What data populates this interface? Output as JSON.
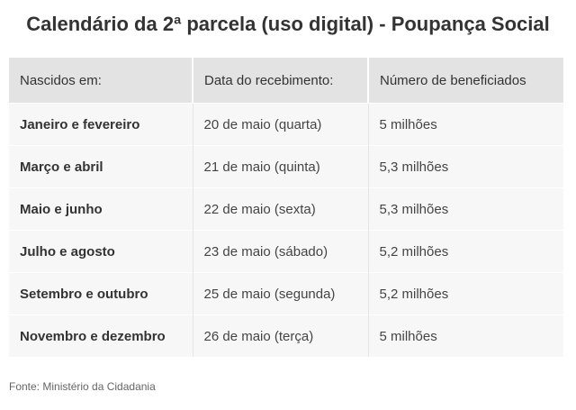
{
  "title": "Calendário da 2ª parcela (uso digital) - Poupança Social",
  "table": {
    "headers": [
      "Nascidos em:",
      "Data do recebimento:",
      "Número de beneficiados"
    ],
    "rows": [
      [
        "Janeiro e fevereiro",
        "20 de maio (quarta)",
        "5 milhões"
      ],
      [
        "Março e abril",
        "21 de maio (quinta)",
        "5,3 milhões"
      ],
      [
        "Maio e junho",
        "22 de maio (sexta)",
        "5,3 milhões"
      ],
      [
        "Julho e agosto",
        "23 de maio (sábado)",
        "5,2 milhões"
      ],
      [
        "Setembro e outubro",
        "25 de maio (segunda)",
        "5,2 milhões"
      ],
      [
        "Novembro e dezembro",
        "26 de maio (terça)",
        "5 milhões"
      ]
    ]
  },
  "source": "Fonte: Ministério da Cidadania"
}
